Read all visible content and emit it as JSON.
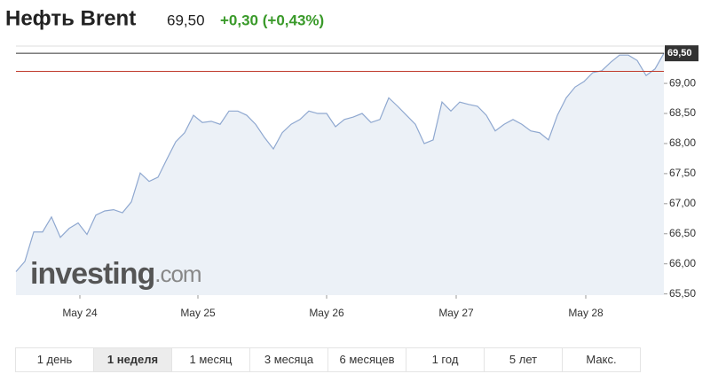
{
  "chart_data": {
    "type": "area",
    "title": "Нефть Brent",
    "price": "69,50",
    "change": "+0,30 (+0,43%)",
    "watermark": [
      "investing",
      ".com"
    ],
    "color": "#8fa8d0",
    "fill": "#e9eef6",
    "grid": false,
    "values": [
      65.87,
      66.04,
      66.53,
      66.53,
      66.78,
      66.44,
      66.59,
      66.68,
      66.49,
      66.81,
      66.88,
      66.9,
      66.85,
      67.03,
      67.51,
      67.37,
      67.44,
      67.74,
      68.03,
      68.18,
      68.47,
      68.35,
      68.37,
      68.32,
      68.54,
      68.54,
      68.47,
      68.32,
      68.1,
      67.91,
      68.18,
      68.32,
      68.4,
      68.54,
      68.5,
      68.5,
      68.28,
      68.4,
      68.44,
      68.5,
      68.35,
      68.4,
      68.76,
      68.62,
      68.47,
      68.32,
      68.0,
      68.06,
      68.69,
      68.54,
      68.69,
      68.65,
      68.62,
      68.47,
      68.21,
      68.32,
      68.4,
      68.32,
      68.21,
      68.18,
      68.06,
      68.47,
      68.76,
      68.94,
      69.03,
      69.18,
      69.21,
      69.35,
      69.47,
      69.47,
      69.38,
      69.13,
      69.24,
      69.5
    ],
    "xlim": [
      0,
      73
    ],
    "xticks": [
      {
        "value": 7.2,
        "label": "May 24"
      },
      {
        "value": 20.5,
        "label": "May 25"
      },
      {
        "value": 35,
        "label": "May 26"
      },
      {
        "value": 49.6,
        "label": "May 27"
      },
      {
        "value": 64.2,
        "label": "May 28"
      }
    ],
    "ylim": [
      65.48,
      69.62
    ],
    "yticks": [
      {
        "value": 65.5,
        "label": "65,50"
      },
      {
        "value": 66,
        "label": "66,00"
      },
      {
        "value": 66.5,
        "label": "66,50"
      },
      {
        "value": 67,
        "label": "67,00"
      },
      {
        "value": 67.5,
        "label": "67,50"
      },
      {
        "value": 68,
        "label": "68,00"
      },
      {
        "value": 68.5,
        "label": "68,50"
      },
      {
        "value": 69,
        "label": "69,00"
      }
    ],
    "reference_lines": [
      {
        "value": 69.5,
        "label": "69,50",
        "color": "#333333"
      },
      {
        "value": 69.2,
        "color": "#c0392b"
      }
    ],
    "tabs": [
      "1 день",
      "1 неделя",
      "1 месяц",
      "3 месяца",
      "6 месяцев",
      "1 год",
      "5 лет",
      "Макс."
    ],
    "active_tab": 1
  }
}
